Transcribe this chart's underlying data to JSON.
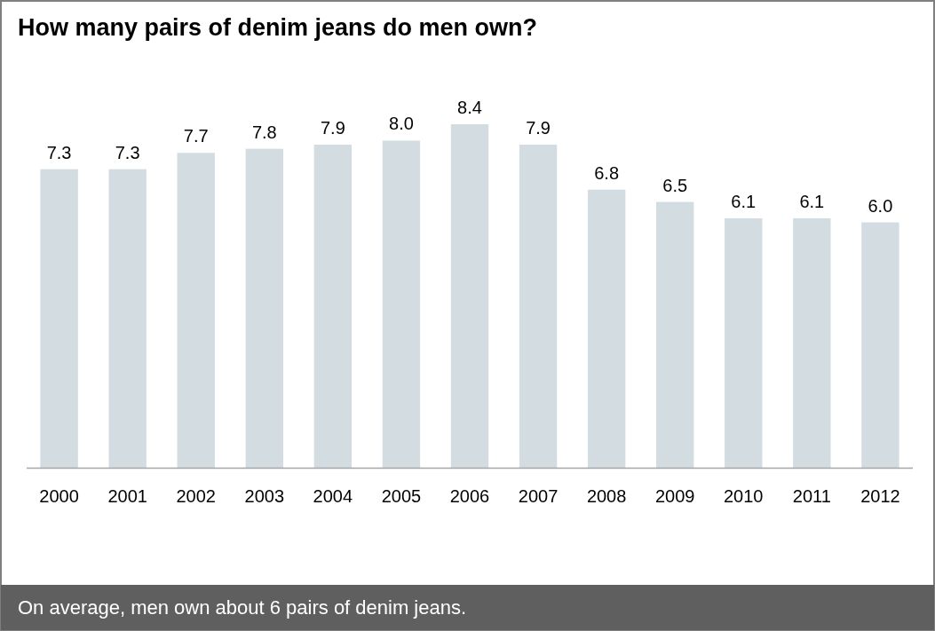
{
  "chart_data": {
    "type": "bar",
    "title": "How many pairs of denim jeans do men own?",
    "categories": [
      "2000",
      "2001",
      "2002",
      "2003",
      "2004",
      "2005",
      "2006",
      "2007",
      "2008",
      "2009",
      "2010",
      "2011",
      "2012"
    ],
    "values": [
      7.3,
      7.3,
      7.7,
      7.8,
      7.9,
      8.0,
      8.4,
      7.9,
      6.8,
      6.5,
      6.1,
      6.1,
      6.0
    ],
    "color": "#d3dde1",
    "data_labels": true,
    "value_labels": [
      "7.3",
      "7.3",
      "7.7",
      "7.8",
      "7.9",
      "8.0",
      "8.4",
      "7.9",
      "6.8",
      "6.5",
      "6.1",
      "6.1",
      "6.0"
    ],
    "annotations": [
      "On average, men own about 6 pairs of denim jeans."
    ]
  }
}
